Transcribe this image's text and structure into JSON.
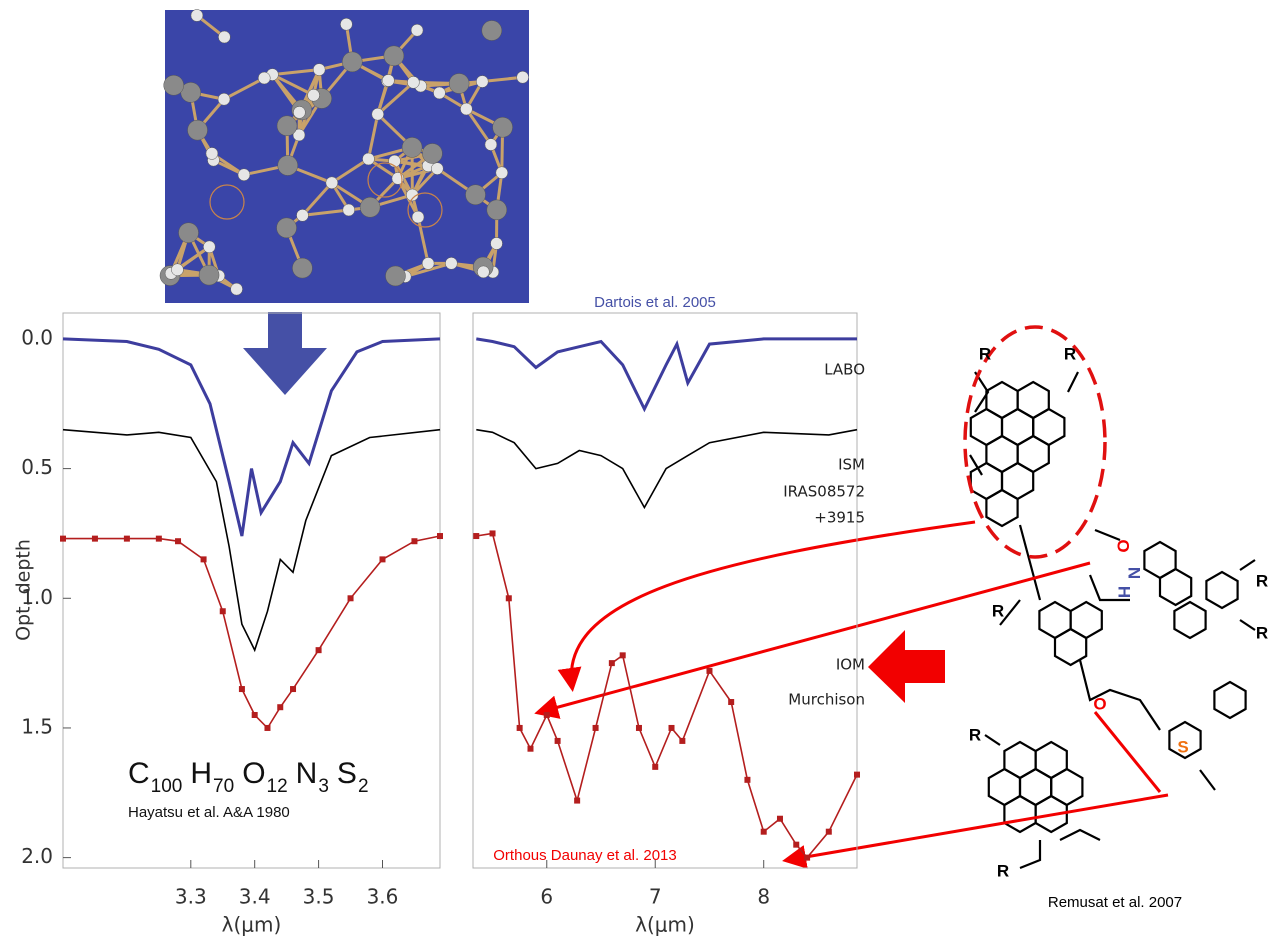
{
  "chart_data": [
    {
      "type": "line",
      "y_label": "Opt. depth",
      "x_label": "λ(μm)",
      "xlim": [
        3.1,
        3.69
      ],
      "xticks": [
        3.3,
        3.4,
        3.5,
        3.6
      ],
      "ylim": [
        2.04,
        -0.1
      ],
      "yticks": [
        {
          "value": 0,
          "label": "0.0"
        },
        0.5,
        {
          "value": 1,
          "label": "1.0"
        },
        1.5,
        {
          "value": 2,
          "label": "2.0"
        }
      ],
      "formula": [
        [
          "C",
          100
        ],
        [
          "H",
          70
        ],
        [
          "O",
          12
        ],
        [
          "N",
          3
        ],
        [
          "S",
          2
        ]
      ],
      "formula_source": "Hayatsu et al. A&A 1980",
      "series": [
        {
          "color": "#3d3d9e",
          "x": [
            3.1,
            3.2,
            3.25,
            3.3,
            3.33,
            3.36,
            3.38,
            3.395,
            3.41,
            3.44,
            3.46,
            3.485,
            3.52,
            3.56,
            3.6,
            3.69
          ],
          "values": [
            0.0,
            0.01,
            0.04,
            0.1,
            0.25,
            0.55,
            0.76,
            0.5,
            0.67,
            0.55,
            0.4,
            0.48,
            0.2,
            0.05,
            0.01,
            0.0
          ]
        },
        {
          "color": "#000000",
          "x": [
            3.1,
            3.2,
            3.25,
            3.3,
            3.34,
            3.36,
            3.38,
            3.4,
            3.42,
            3.44,
            3.46,
            3.48,
            3.52,
            3.58,
            3.69
          ],
          "values": [
            0.35,
            0.37,
            0.36,
            0.38,
            0.55,
            0.8,
            1.1,
            1.2,
            1.05,
            0.85,
            0.9,
            0.7,
            0.45,
            0.38,
            0.35
          ]
        },
        {
          "color": "#b41e1e",
          "marker": "square",
          "x": [
            3.1,
            3.15,
            3.2,
            3.25,
            3.28,
            3.32,
            3.35,
            3.38,
            3.4,
            3.42,
            3.44,
            3.46,
            3.5,
            3.55,
            3.6,
            3.65,
            3.69
          ],
          "values": [
            0.77,
            0.77,
            0.77,
            0.77,
            0.78,
            0.85,
            1.05,
            1.35,
            1.45,
            1.5,
            1.42,
            1.35,
            1.2,
            1.0,
            0.85,
            0.78,
            0.76
          ]
        }
      ]
    },
    {
      "type": "line",
      "x_label": "λ(μm)",
      "xlim": [
        5.32,
        8.86
      ],
      "xticks": [
        6,
        7,
        8
      ],
      "ylim": [
        2.04,
        -0.1
      ],
      "annotations": [
        "Dartois et al. 2005",
        "Orthous Daunay et al. 2013"
      ],
      "series": [
        {
          "name": [
            "LABO"
          ],
          "color": "#3d3d9e",
          "x": [
            5.35,
            5.5,
            5.7,
            5.9,
            6.1,
            6.3,
            6.5,
            6.7,
            6.9,
            7.1,
            7.2,
            7.3,
            7.5,
            8.0,
            8.5,
            8.86
          ],
          "values": [
            0.0,
            0.01,
            0.03,
            0.11,
            0.05,
            0.03,
            0.01,
            0.1,
            0.27,
            0.1,
            0.02,
            0.17,
            0.02,
            0.0,
            0.0,
            0.0
          ]
        },
        {
          "name": [
            "ISM",
            "IRAS08572",
            "+3915"
          ],
          "color": "#000000",
          "x": [
            5.35,
            5.5,
            5.7,
            5.9,
            6.1,
            6.3,
            6.5,
            6.7,
            6.9,
            7.1,
            7.3,
            7.5,
            8.0,
            8.6,
            8.86
          ],
          "values": [
            0.35,
            0.36,
            0.4,
            0.5,
            0.48,
            0.43,
            0.45,
            0.5,
            0.65,
            0.5,
            0.45,
            0.4,
            0.36,
            0.37,
            0.35
          ]
        },
        {
          "name": [
            "IOM",
            "Murchison"
          ],
          "color": "#b41e1e",
          "marker": "square",
          "x": [
            5.35,
            5.5,
            5.65,
            5.75,
            5.85,
            6.0,
            6.1,
            6.28,
            6.45,
            6.6,
            6.7,
            6.85,
            7.0,
            7.15,
            7.25,
            7.5,
            7.7,
            7.85,
            8.0,
            8.15,
            8.3,
            8.4,
            8.6,
            8.86
          ],
          "values": [
            0.76,
            0.75,
            1.0,
            1.5,
            1.58,
            1.45,
            1.55,
            1.78,
            1.5,
            1.25,
            1.22,
            1.5,
            1.65,
            1.5,
            1.55,
            1.28,
            1.4,
            1.7,
            1.9,
            1.85,
            1.95,
            2.0,
            1.9,
            1.68
          ]
        }
      ]
    }
  ],
  "structure": {
    "labels": [
      "R",
      "R",
      "O",
      "H",
      "N",
      "R",
      "R",
      "R",
      "O",
      "R",
      "S",
      "R"
    ],
    "credit": "Remusat et al. 2007"
  }
}
